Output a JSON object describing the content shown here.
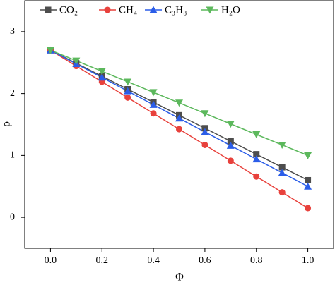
{
  "chart_data": {
    "type": "line",
    "x_label": "Φ",
    "y_label": "ρ",
    "x": [
      0,
      0.1,
      0.2,
      0.3,
      0.4,
      0.5,
      0.6,
      0.7,
      0.8,
      0.9,
      1.0
    ],
    "series": [
      {
        "name": "CO₂",
        "color": "#4d4d4d",
        "marker": "square",
        "values": [
          2.7,
          2.49,
          2.28,
          2.07,
          1.86,
          1.65,
          1.44,
          1.23,
          1.02,
          0.81,
          0.6
        ]
      },
      {
        "name": "CH₄",
        "color": "#e8413c",
        "marker": "circle",
        "values": [
          2.7,
          2.445,
          2.19,
          1.935,
          1.68,
          1.425,
          1.17,
          0.915,
          0.66,
          0.405,
          0.15
        ]
      },
      {
        "name": "C₃H₈",
        "color": "#2b5de8",
        "marker": "triangle-up",
        "values": [
          2.7,
          2.48,
          2.26,
          2.04,
          1.82,
          1.6,
          1.38,
          1.16,
          0.94,
          0.72,
          0.5
        ]
      },
      {
        "name": "H₂O",
        "color": "#5cb85c",
        "marker": "triangle-down",
        "values": [
          2.7,
          2.53,
          2.36,
          2.19,
          2.02,
          1.85,
          1.68,
          1.51,
          1.34,
          1.17,
          1.0
        ]
      }
    ],
    "xlim": [
      -0.1,
      1.1
    ],
    "xticks": [
      {
        "value": 0,
        "label": "0.0"
      },
      0.2,
      0.4,
      0.6,
      0.8,
      {
        "value": 1,
        "label": "1.0"
      }
    ],
    "ylim": [
      -0.5,
      3.5
    ],
    "yticks": [
      0,
      1,
      2,
      3
    ],
    "legend": "upper left"
  }
}
